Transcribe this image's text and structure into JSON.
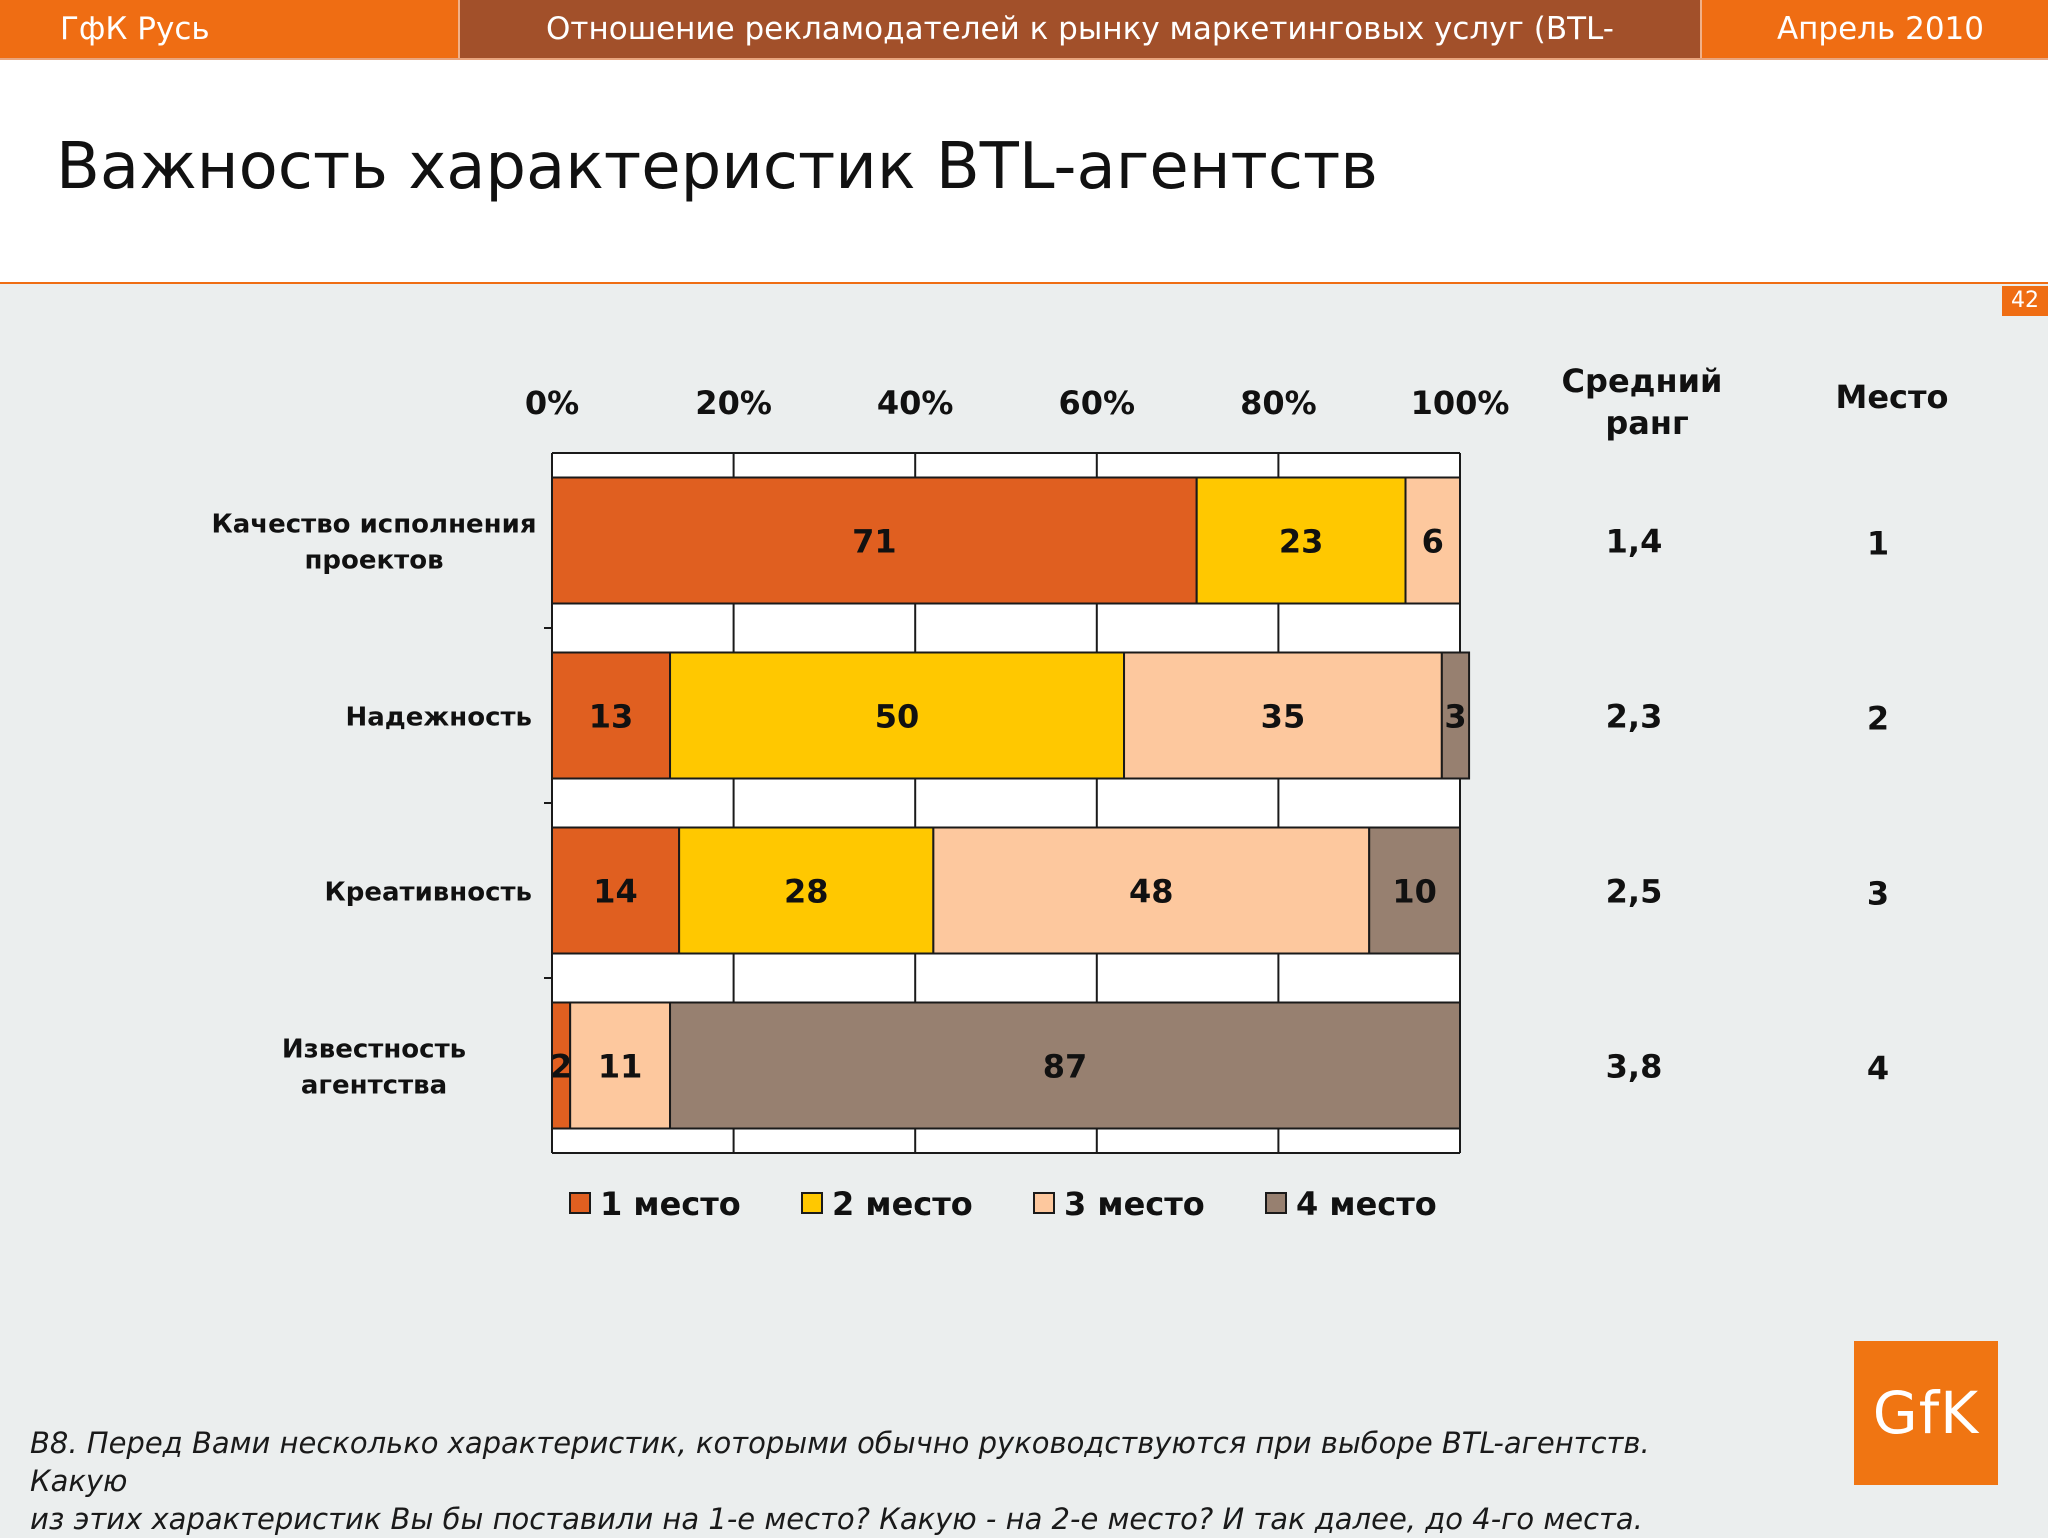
{
  "header": {
    "left": "ГфК Русь",
    "center": "Отношение рекламодателей к рынку маркетинговых услуг (BTL-агентствам)",
    "right": "Апрель 2010"
  },
  "title": "Важность характеристик BTL-агентств",
  "page_number": "42",
  "columns": {
    "avg_rank_line1": "Средний",
    "avg_rank_line2": "ранг",
    "place": "Место"
  },
  "table": [
    {
      "avg_rank": "1,4",
      "place": "1"
    },
    {
      "avg_rank": "2,3",
      "place": "2"
    },
    {
      "avg_rank": "2,5",
      "place": "3"
    },
    {
      "avg_rank": "3,8",
      "place": "4"
    }
  ],
  "chart_data": {
    "type": "bar",
    "orientation": "horizontal",
    "stacked": true,
    "categories": [
      [
        "Качество исполнения",
        "проектов"
      ],
      [
        "Надежность"
      ],
      [
        "Креативность"
      ],
      [
        "Известность",
        "агентства"
      ]
    ],
    "x_ticks": [
      "0%",
      "20%",
      "40%",
      "60%",
      "80%",
      "100%"
    ],
    "xlim": [
      0,
      100
    ],
    "grid": true,
    "legend_position": "bottom",
    "series": [
      {
        "name": "1 место",
        "color": "#e05f20",
        "values": [
          71,
          13,
          14,
          2
        ]
      },
      {
        "name": "2 место",
        "color": "#ffc800",
        "values": [
          23,
          50,
          28,
          0
        ]
      },
      {
        "name": "3 место",
        "color": "#fdc89e",
        "values": [
          6,
          35,
          48,
          11
        ]
      },
      {
        "name": "4 место",
        "color": "#978070",
        "values": [
          0,
          3,
          10,
          87
        ]
      }
    ]
  },
  "footnote": {
    "line1": "В8. Перед Вами несколько характеристик, которыми обычно руководствуются при выборе BTL-агентств. Какую",
    "line2": "из этих характеристик Вы бы поставили на 1-е место? Какую - на 2-е место? И так далее, до 4-го места."
  },
  "logo": {
    "text": "GfK",
    "color": "#f07512"
  }
}
